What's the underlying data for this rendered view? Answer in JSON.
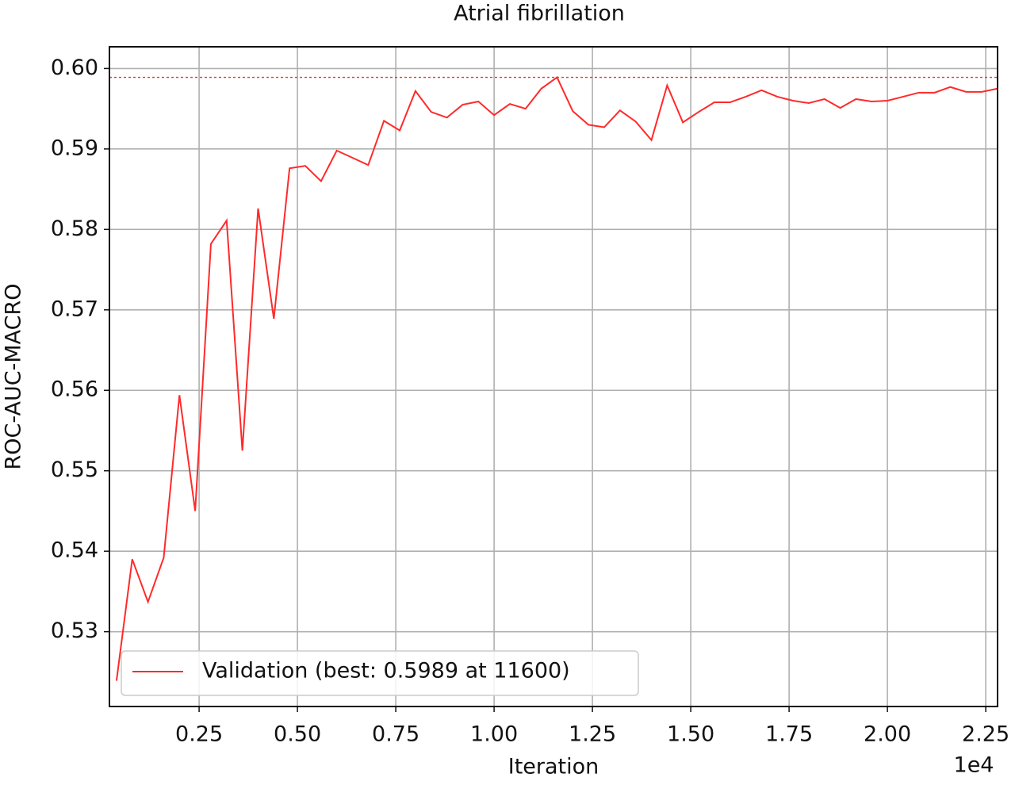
{
  "chart_data": {
    "type": "line",
    "title": "Atrial fibrillation",
    "x_label": "Iteration",
    "y_label": "ROC-AUC-MACRO",
    "x_offset_label": "1e4",
    "x": [
      400,
      800,
      1200,
      1600,
      2000,
      2400,
      2800,
      3200,
      3600,
      4000,
      4400,
      4800,
      5200,
      5600,
      6000,
      6400,
      6800,
      7200,
      7600,
      8000,
      8400,
      8800,
      9200,
      9600,
      10000,
      10400,
      10800,
      11200,
      11600,
      12000,
      12400,
      12800,
      13200,
      13600,
      14000,
      14400,
      14800,
      15200,
      15600,
      16000,
      16400,
      16800,
      17200,
      17600,
      18000,
      18400,
      18800,
      19200,
      19600,
      20000,
      20400,
      20800,
      21200,
      21600,
      22000,
      22400,
      22800
    ],
    "series": [
      {
        "name": "Validation (best: 0.5989 at 11600)",
        "color": "#ff2a2a",
        "values": [
          0.5239,
          0.539,
          0.5337,
          0.5392,
          0.5594,
          0.545,
          0.5782,
          0.5811,
          0.5525,
          0.5826,
          0.5689,
          0.5876,
          0.5879,
          0.586,
          0.5898,
          0.5889,
          0.588,
          0.5935,
          0.5923,
          0.5972,
          0.5946,
          0.5939,
          0.5955,
          0.5959,
          0.5942,
          0.5956,
          0.595,
          0.5975,
          0.5989,
          0.5947,
          0.593,
          0.5927,
          0.5948,
          0.5934,
          0.5911,
          0.5979,
          0.5933,
          0.5946,
          0.5958,
          0.5958,
          0.5965,
          0.5973,
          0.5965,
          0.596,
          0.5957,
          0.5962,
          0.5951,
          0.5962,
          0.5959,
          0.596,
          0.5965,
          0.597,
          0.597,
          0.5977,
          0.5971,
          0.5971,
          0.5975
        ]
      }
    ],
    "reference_line": 0.5989,
    "xlim": [
      220,
      22800
    ],
    "ylim": [
      0.5207,
      0.6027
    ],
    "xticks": [
      {
        "value": 2500,
        "label": "0.25"
      },
      {
        "value": 5000,
        "label": "0.50"
      },
      {
        "value": 7500,
        "label": "0.75"
      },
      {
        "value": 10000,
        "label": "1.00"
      },
      {
        "value": 12500,
        "label": "1.25"
      },
      {
        "value": 15000,
        "label": "1.50"
      },
      {
        "value": 17500,
        "label": "1.75"
      },
      {
        "value": 20000,
        "label": "2.00"
      },
      {
        "value": 22500,
        "label": "2.25"
      }
    ],
    "yticks": [
      0.53,
      0.54,
      0.55,
      0.56,
      0.57,
      0.58,
      0.59,
      {
        "value": 0.6,
        "label": "0.60"
      }
    ],
    "grid": true,
    "legend": "lower left"
  }
}
